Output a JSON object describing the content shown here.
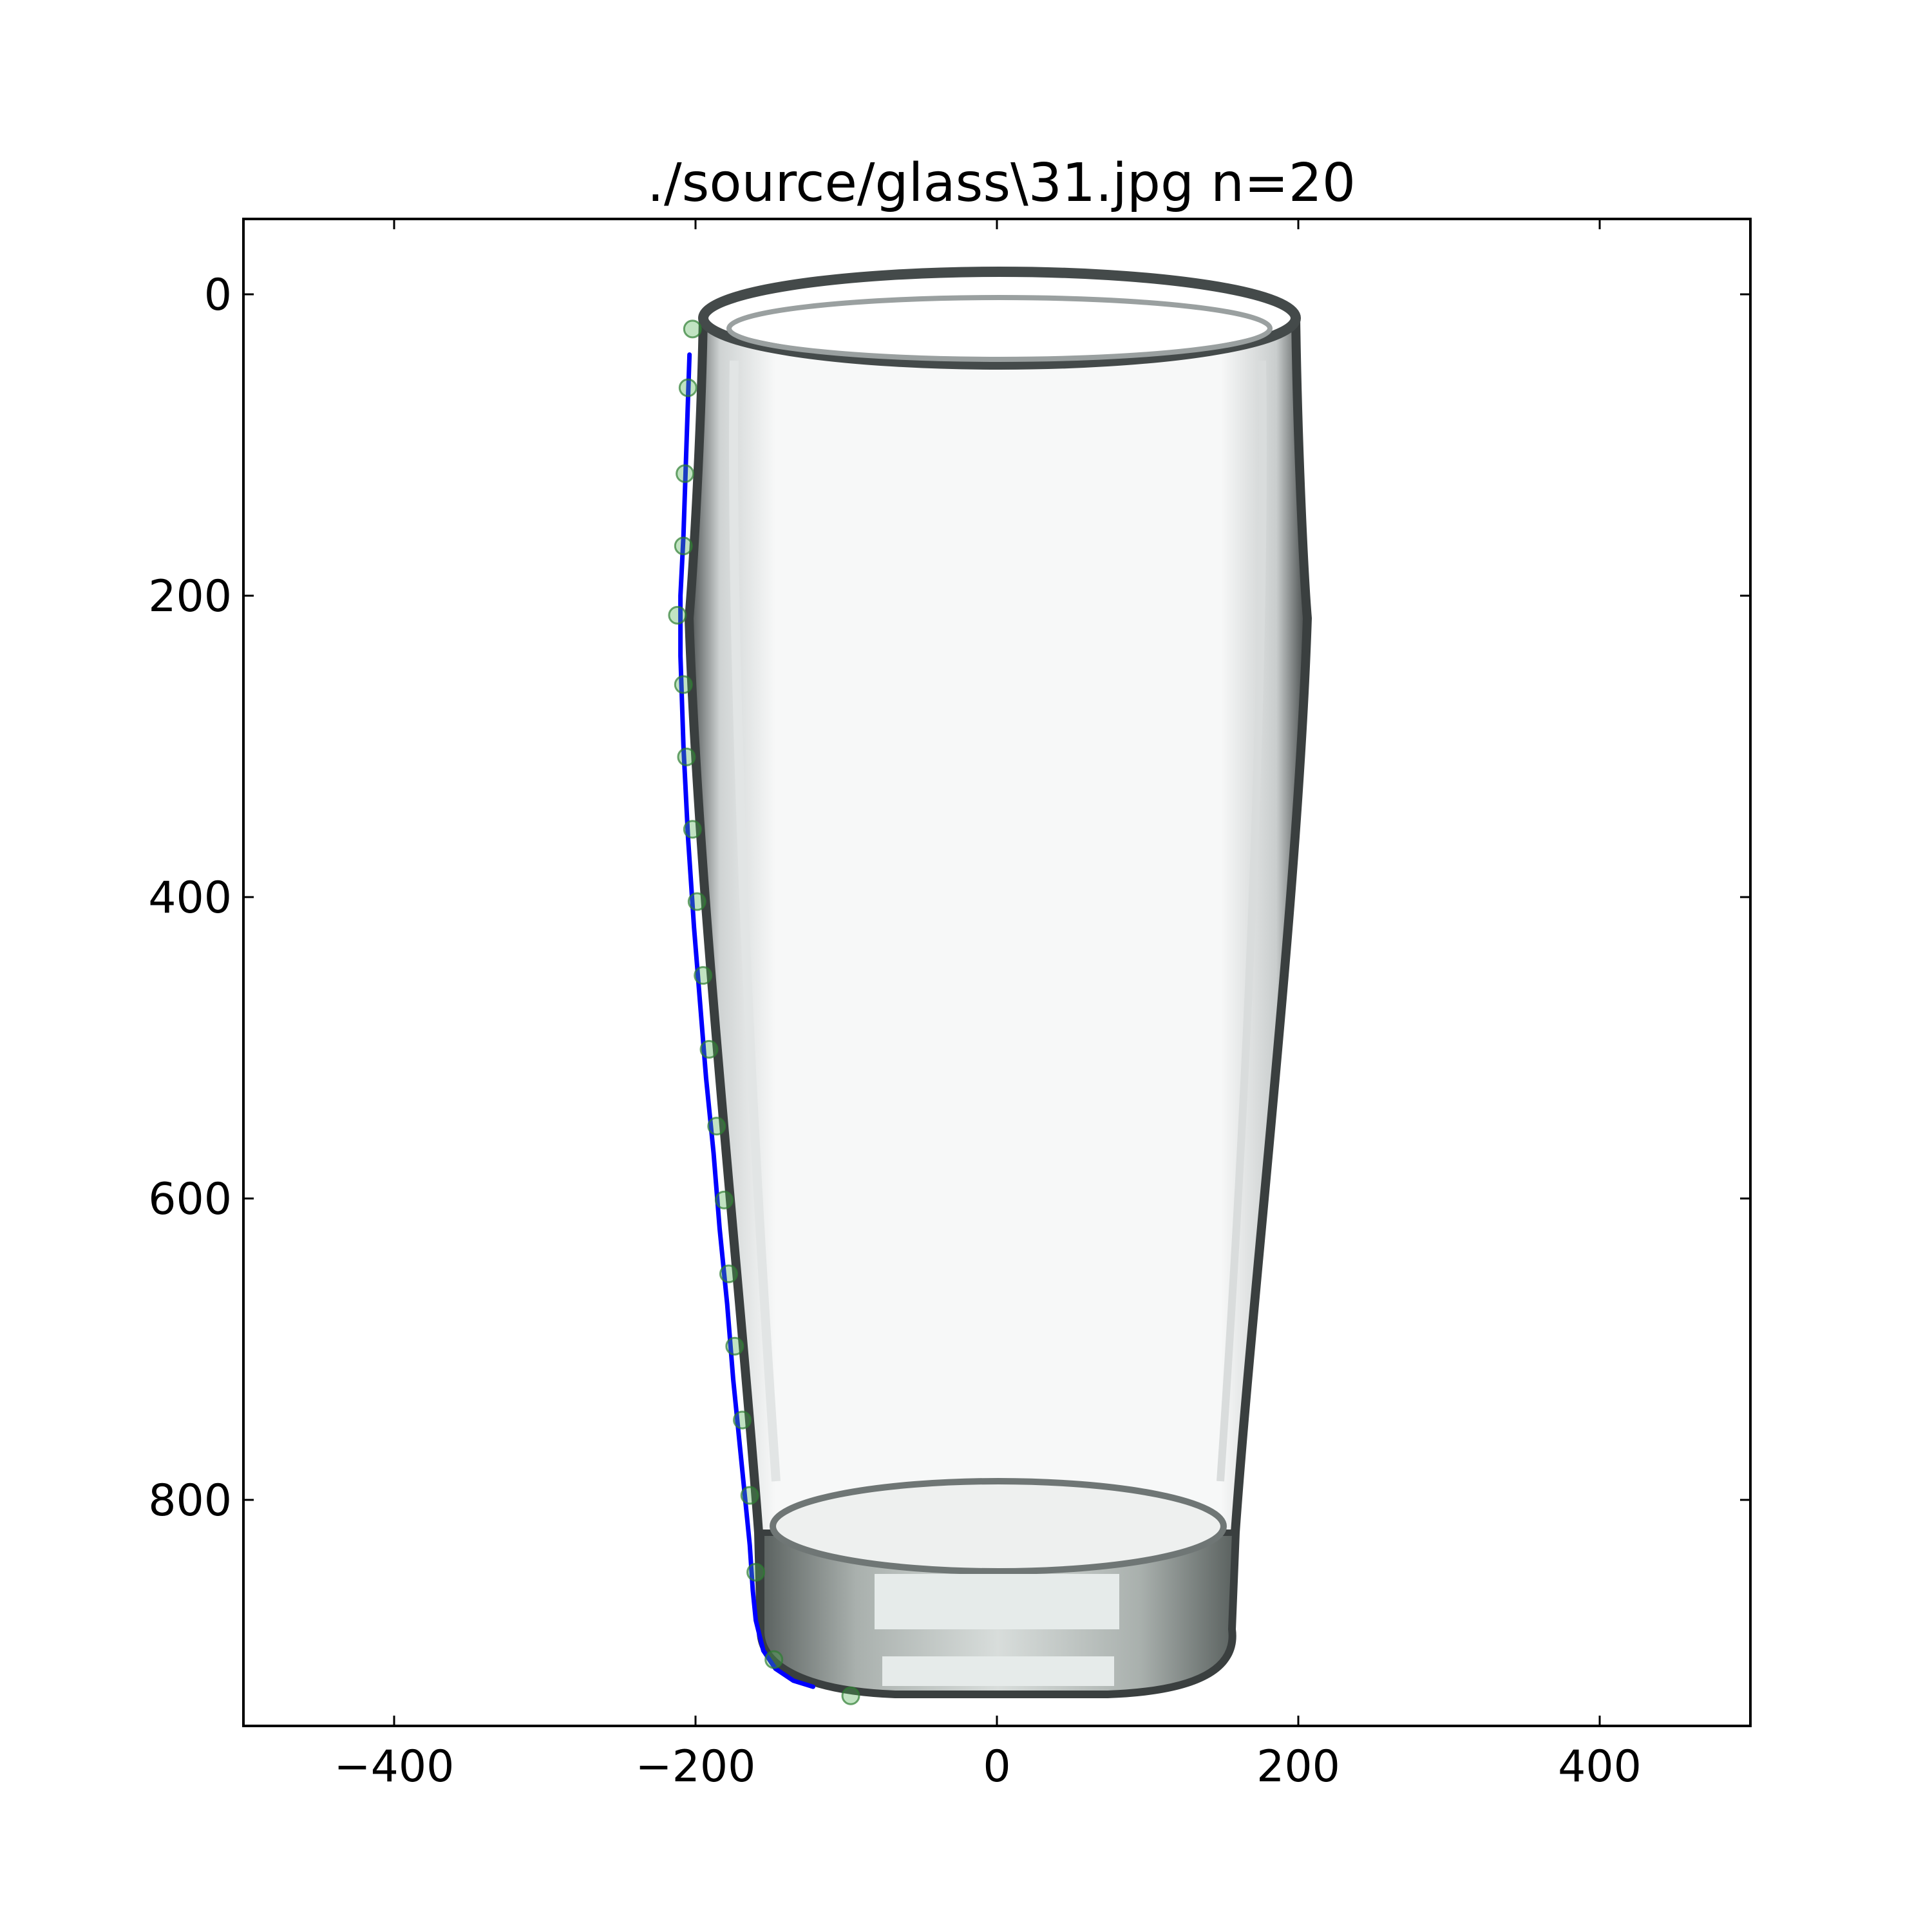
{
  "chart_data": {
    "type": "scatter",
    "title": "./source/glass\\31.jpg n=20",
    "xlabel": "",
    "ylabel": "",
    "xlim": [
      -500,
      500
    ],
    "ylim": [
      950,
      -50
    ],
    "y_inverted": true,
    "grid": false,
    "legend": "none",
    "x_ticks": [
      -400,
      -200,
      0,
      200,
      400
    ],
    "y_ticks": [
      0,
      200,
      400,
      600,
      800
    ],
    "x_tick_labels": [
      "−400",
      "−200",
      "0",
      "200",
      "400"
    ],
    "y_tick_labels": [
      "0",
      "200",
      "400",
      "600",
      "800"
    ],
    "background_image": "glass-photo",
    "series": [
      {
        "type": "scatter",
        "color": "#4caf50",
        "x": [
          -202,
          -205,
          -207,
          -208,
          -212,
          -208,
          -206,
          -202,
          -199,
          -195,
          -191,
          -186,
          -181,
          -178,
          -174,
          -169,
          -164,
          -160,
          -148,
          -97
        ],
        "y": [
          23,
          62,
          119,
          167,
          213,
          259,
          307,
          355,
          403,
          452,
          501,
          552,
          601,
          650,
          698,
          747,
          797,
          848,
          906,
          930
        ]
      },
      {
        "type": "line",
        "color": "#0000ff",
        "x": [
          -204,
          -206,
          -208,
          -210,
          -210,
          -208,
          -205,
          -201,
          -197,
          -193,
          -188,
          -184,
          -179,
          -175,
          -171,
          -167,
          -164,
          -162,
          -160,
          -155,
          -147,
          -135,
          -122
        ],
        "y": [
          40,
          100,
          160,
          200,
          240,
          300,
          360,
          420,
          470,
          520,
          570,
          620,
          670,
          720,
          760,
          800,
          830,
          860,
          880,
          900,
          912,
          920,
          924
        ]
      }
    ]
  }
}
